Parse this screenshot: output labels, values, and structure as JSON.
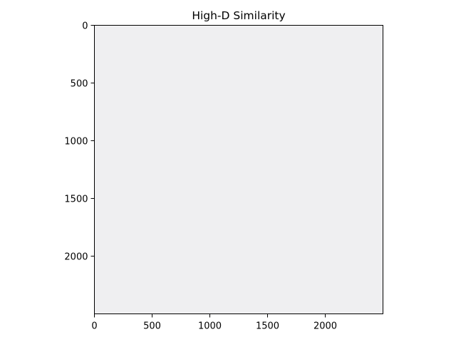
{
  "chart_data": {
    "type": "heatmap",
    "title": "High-D Similarity",
    "xlabel": "",
    "ylabel": "",
    "xlim": [
      0,
      2500
    ],
    "ylim": [
      2500,
      0
    ],
    "x_ticks": [
      0,
      500,
      1000,
      1500,
      2000
    ],
    "y_ticks": [
      0,
      500,
      1000,
      1500,
      2000
    ],
    "x_tick_labels": [
      "0",
      "500",
      "1000",
      "1500",
      "2000"
    ],
    "y_tick_labels": [
      "0",
      "500",
      "1000",
      "1500",
      "2000"
    ],
    "y_axis_inverted": true,
    "grid": false,
    "matrix_color": "#efeff1",
    "axis_color": "#000000"
  }
}
